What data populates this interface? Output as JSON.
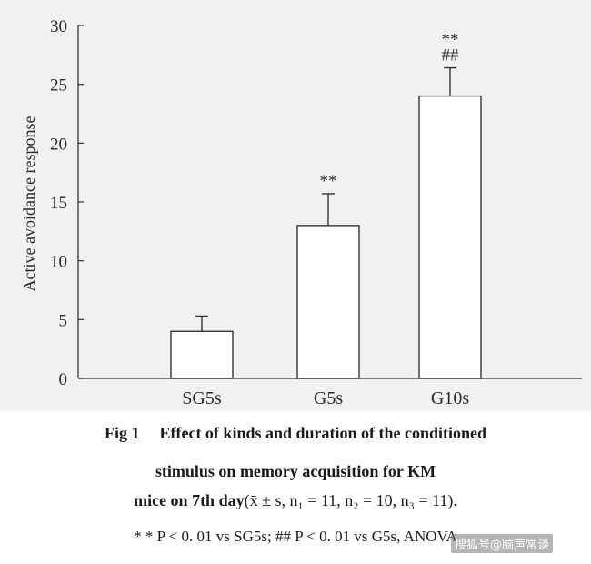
{
  "chart_data": {
    "type": "bar",
    "categories": [
      "SG5s",
      "G5s",
      "G10s"
    ],
    "values": [
      4,
      13,
      24
    ],
    "errors": [
      1.3,
      2.7,
      2.4
    ],
    "significance": [
      "",
      "**",
      "**\n##"
    ],
    "ylabel": "Active avoidance response",
    "xlabel": "",
    "ylim": [
      0,
      30
    ],
    "yticks": [
      0,
      5,
      10,
      15,
      20,
      25,
      30
    ],
    "grid": false,
    "bar_fill": "#ffffff",
    "bar_stroke": "#333333",
    "plot_background": "#f1f1f1"
  },
  "caption": {
    "fig_label": "Fig 1",
    "title": "Effect of kinds and duration of the conditioned",
    "line2": "stimulus on memory acquisition for KM",
    "line3_bold": "mice on 7th day",
    "line3_stats": "(x̄ ± s, n₁ = 11, n₂ = 10, n₃ = 11).",
    "line4": "* * P < 0. 01 vs SG5s; ## P < 0. 01 vs G5s, ANOVA"
  },
  "watermark": "搜狐号@脑声常谈"
}
